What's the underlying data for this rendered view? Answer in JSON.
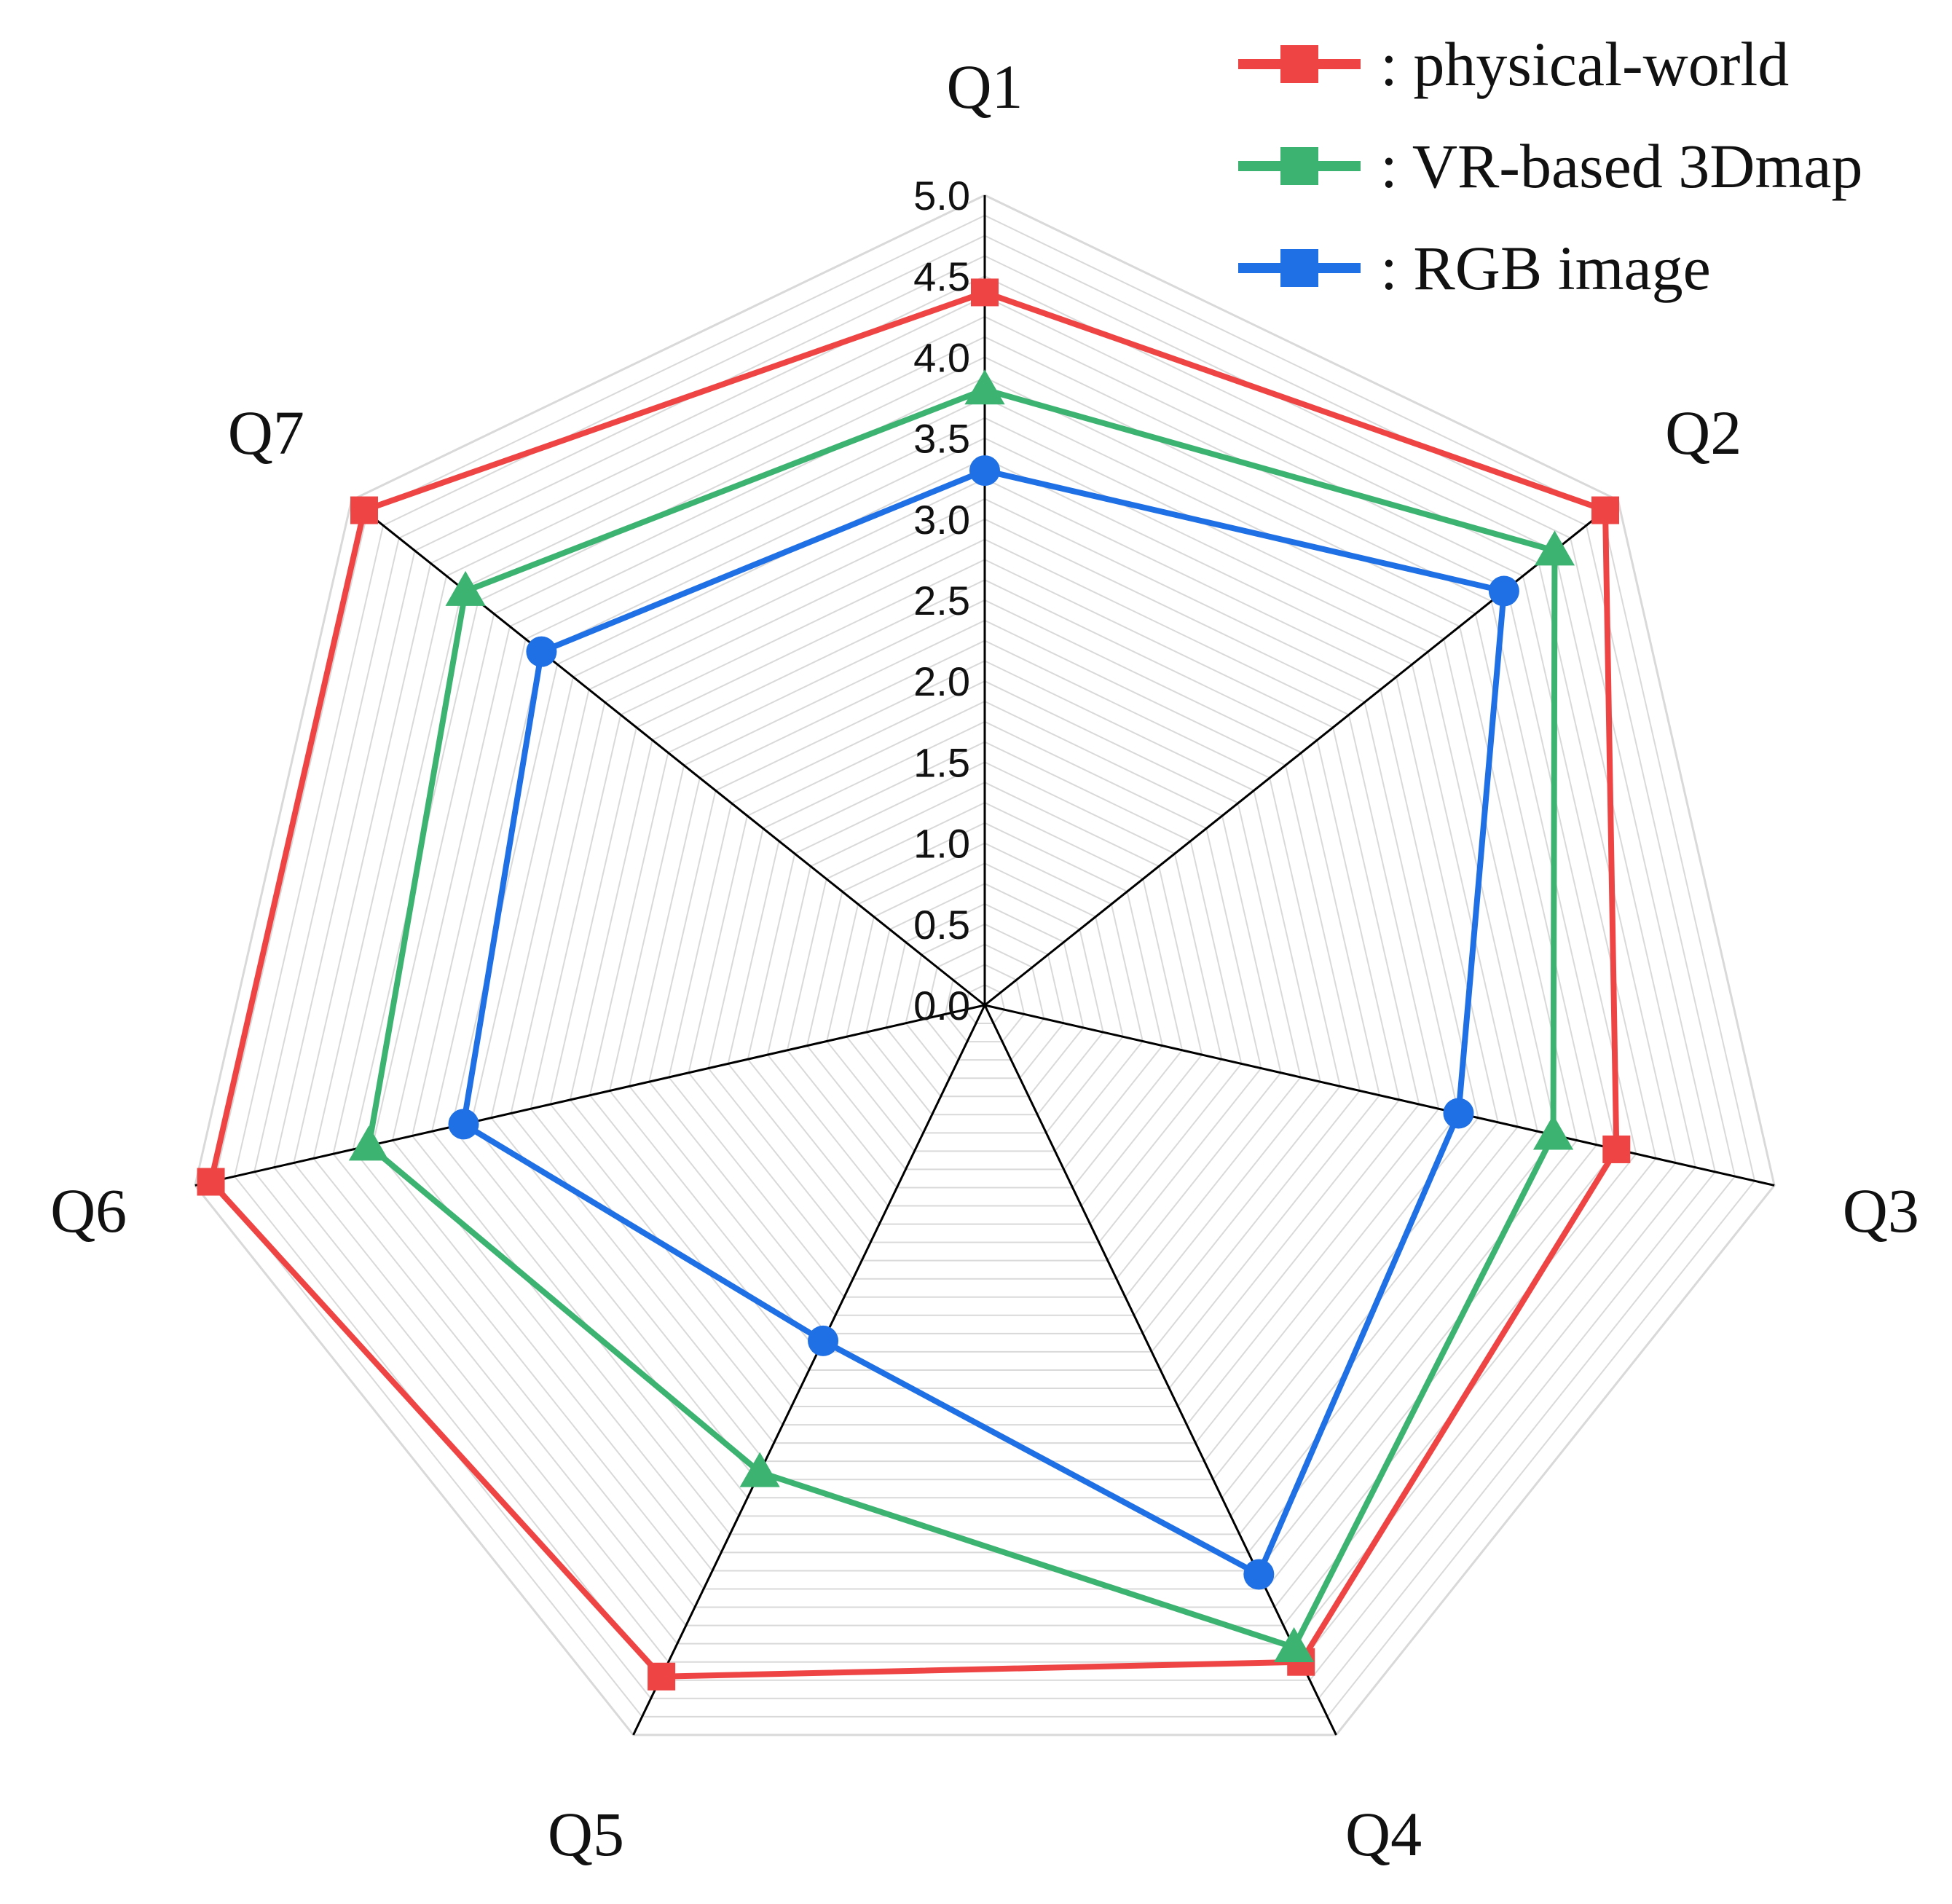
{
  "chart_data": {
    "type": "radar",
    "axes": [
      "Q1",
      "Q2",
      "Q3",
      "Q4",
      "Q5",
      "Q6",
      "Q7"
    ],
    "ticks": [
      "0.0",
      "0.5",
      "1.0",
      "1.5",
      "2.0",
      "2.5",
      "3.0",
      "3.5",
      "4.0",
      "4.5",
      "5.0"
    ],
    "rlim": [
      0,
      5
    ],
    "grid": true,
    "legend_position": "top-right",
    "series": [
      {
        "name": ": physical-world",
        "color": "#ef4444",
        "marker": "square",
        "values": [
          4.4,
          4.9,
          4.0,
          4.5,
          4.6,
          4.9,
          4.9
        ]
      },
      {
        "name": ": VR-based 3Dmap",
        "color": "#3cb371",
        "marker": "triangle",
        "values": [
          3.8,
          4.5,
          3.6,
          4.4,
          3.2,
          3.9,
          4.1
        ]
      },
      {
        "name": ": RGB image",
        "color": "#1f6fe5",
        "marker": "circle",
        "values": [
          3.3,
          4.1,
          3.0,
          3.9,
          2.3,
          3.3,
          3.5
        ]
      }
    ]
  }
}
